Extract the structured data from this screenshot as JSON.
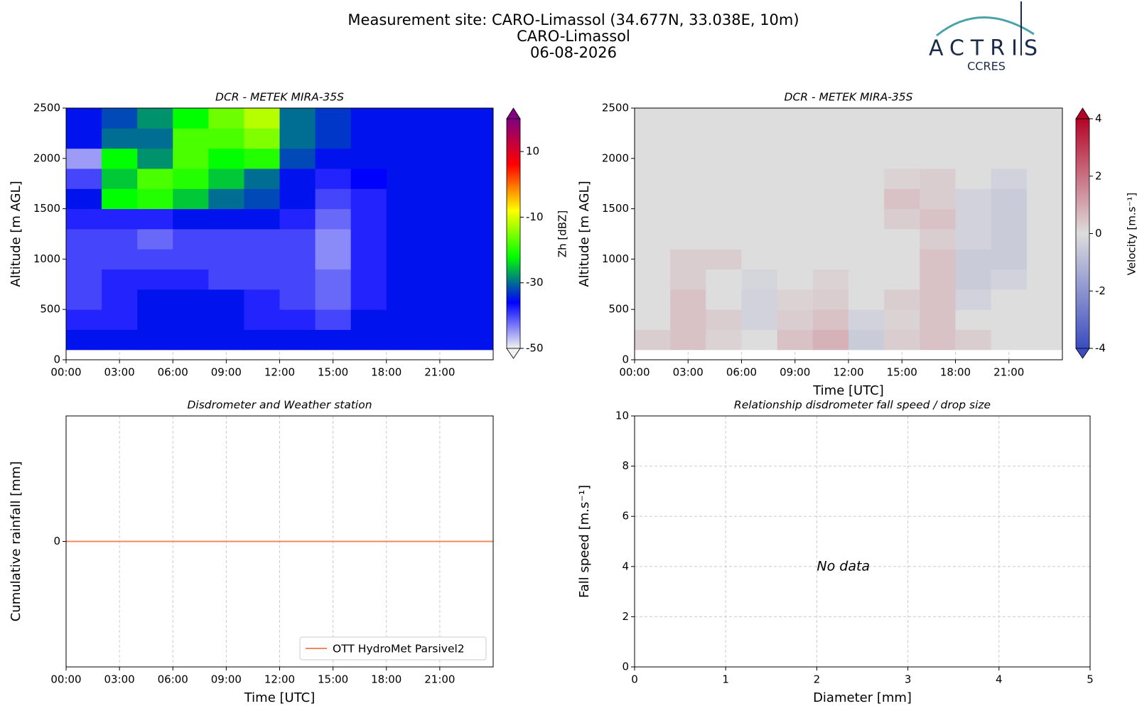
{
  "header": {
    "lines": [
      "Measurement site: CARO-Limassol (34.677N, 33.038E, 10m)",
      "CARO-Limassol",
      "06-08-2026"
    ]
  },
  "logo": {
    "text": "ACTRIS",
    "subtext": "CCRES"
  },
  "chart_data": [
    {
      "type": "heatmap",
      "title": "DCR - METEK MIRA-35S",
      "ylabel": "Altitude [m AGL]",
      "x": [
        1,
        3,
        5,
        7,
        9,
        11,
        13,
        15,
        17,
        19,
        21,
        23
      ],
      "y": [
        200,
        400,
        600,
        800,
        1000,
        1200,
        1400,
        1600,
        1800,
        2000,
        2200,
        2400
      ],
      "z": [
        [
          -35,
          -35,
          -35,
          -35,
          -35,
          -35,
          -35,
          -35,
          -35,
          -35,
          -35,
          -35
        ],
        [
          -38,
          -38,
          -35,
          -35,
          -35,
          -38,
          -38,
          -40,
          -35,
          -35,
          -35,
          -35
        ],
        [
          -40,
          -38,
          -35,
          -35,
          -35,
          -38,
          -40,
          -42,
          -38,
          -35,
          -35,
          -35
        ],
        [
          -40,
          -38,
          -38,
          -38,
          -40,
          -40,
          -40,
          -42,
          -38,
          -35,
          -35,
          -35
        ],
        [
          -40,
          -40,
          -40,
          -40,
          -40,
          -40,
          -40,
          -44,
          -38,
          -35,
          -35,
          -35
        ],
        [
          -40,
          -40,
          -42,
          -40,
          -40,
          -40,
          -40,
          -44,
          -38,
          -35,
          -35,
          -35
        ],
        [
          -38,
          -38,
          -38,
          -35,
          -35,
          -35,
          -38,
          -42,
          -38,
          -35,
          -35,
          -35
        ],
        [
          -35,
          -22,
          -20,
          -25,
          -30,
          -32,
          -35,
          -40,
          -38,
          -35,
          -35,
          -35
        ],
        [
          -40,
          -25,
          -18,
          -20,
          -25,
          -30,
          -35,
          -38,
          -36,
          -35,
          -35,
          -35
        ],
        [
          -45,
          -22,
          -28,
          -18,
          -22,
          -20,
          -32,
          -35,
          -35,
          -35,
          -35,
          -35
        ],
        [
          -35,
          -30,
          -30,
          -18,
          -18,
          -15,
          -30,
          -33,
          -35,
          -35,
          -35,
          -35
        ],
        [
          -35,
          -32,
          -28,
          -22,
          -16,
          -12,
          -30,
          -33,
          -35,
          -35,
          -35,
          -35
        ]
      ],
      "colormap": [
        "#f2f2f2",
        "#0000ff",
        "#00ff00",
        "#ffff00",
        "#ff0000",
        "#800080"
      ],
      "colorbar": {
        "label": "Zh [dBZ]",
        "lim": [
          -50,
          20
        ],
        "ticks": [
          -50,
          -30,
          -10,
          10
        ]
      },
      "xlim": [
        0,
        24
      ],
      "xticks": [
        {
          "value": 0,
          "label": "00:00"
        },
        {
          "value": 3,
          "label": "03:00"
        },
        {
          "value": 6,
          "label": "06:00"
        },
        {
          "value": 9,
          "label": "09:00"
        },
        {
          "value": 12,
          "label": "12:00"
        },
        {
          "value": 15,
          "label": "15:00"
        },
        {
          "value": 18,
          "label": "18:00"
        },
        {
          "value": 21,
          "label": "21:00"
        }
      ],
      "ylim": [
        0,
        2500
      ],
      "yticks": [
        0,
        500,
        1000,
        1500,
        2000,
        2500
      ],
      "grid": true
    },
    {
      "type": "heatmap",
      "title": "DCR - METEK MIRA-35S",
      "xlabel": "Time [UTC]",
      "ylabel": "Altitude [m AGL]",
      "x": [
        1,
        3,
        5,
        7,
        9,
        11,
        13,
        15,
        17,
        19,
        21,
        23
      ],
      "y": [
        200,
        400,
        600,
        800,
        1000,
        1200,
        1400,
        1600,
        1800,
        2000,
        2200,
        2400
      ],
      "z": [
        [
          0.3,
          0.5,
          0.2,
          0,
          0.5,
          0.8,
          -0.5,
          0.3,
          0.5,
          0.3,
          0,
          0
        ],
        [
          0,
          0.5,
          0.3,
          -0.3,
          0.3,
          0.5,
          -0.3,
          0.2,
          0.5,
          0,
          0,
          0
        ],
        [
          0,
          0.5,
          0,
          -0.3,
          0.2,
          0.3,
          0,
          0.3,
          0.5,
          -0.3,
          0,
          0
        ],
        [
          0,
          0.3,
          0,
          -0.2,
          0,
          0.2,
          0,
          0,
          0.5,
          -0.5,
          -0.3,
          0
        ],
        [
          0,
          0.3,
          0.3,
          0,
          0,
          0,
          0,
          0,
          0.5,
          -0.5,
          -0.5,
          0
        ],
        [
          0,
          0,
          0,
          0,
          0,
          0,
          0,
          0,
          0.3,
          -0.3,
          -0.5,
          0
        ],
        [
          0,
          0,
          0,
          0,
          0,
          0,
          0,
          0.3,
          0.5,
          -0.3,
          -0.5,
          0
        ],
        [
          0,
          0,
          0,
          0,
          0,
          0,
          0,
          0.5,
          0.3,
          -0.3,
          -0.5,
          0
        ],
        [
          0,
          0,
          0,
          0,
          0,
          0,
          0,
          0.2,
          0.3,
          0,
          -0.3,
          0
        ],
        [
          0,
          0,
          0,
          0,
          0,
          0,
          0,
          0,
          0,
          0,
          0,
          0
        ],
        [
          0,
          0,
          0,
          0,
          0,
          0,
          0,
          0,
          0,
          0,
          0,
          0
        ],
        [
          0,
          0,
          0,
          0,
          0,
          0,
          0,
          0,
          0,
          0,
          0,
          0
        ]
      ],
      "colormap": [
        "#3b4cc0",
        "#dddddd",
        "#b40426"
      ],
      "colorbar": {
        "label": "Velocity [m.s⁻¹]",
        "lim": [
          -4,
          4
        ],
        "ticks": [
          -4,
          -2,
          0,
          2,
          4
        ]
      },
      "xlim": [
        0,
        24
      ],
      "xticks": [
        {
          "value": 0,
          "label": "00:00"
        },
        {
          "value": 3,
          "label": "03:00"
        },
        {
          "value": 6,
          "label": "06:00"
        },
        {
          "value": 9,
          "label": "09:00"
        },
        {
          "value": 12,
          "label": "12:00"
        },
        {
          "value": 15,
          "label": "15:00"
        },
        {
          "value": 18,
          "label": "18:00"
        },
        {
          "value": 21,
          "label": "21:00"
        }
      ],
      "ylim": [
        0,
        2500
      ],
      "yticks": [
        0,
        500,
        1000,
        1500,
        2000,
        2500
      ],
      "grid": true
    },
    {
      "type": "line",
      "title": "Disdrometer and Weather station",
      "xlabel": "Time [UTC]",
      "ylabel": "Cumulative rainfall [mm]",
      "x": [
        0,
        24
      ],
      "series": [
        {
          "name": "OTT HydroMet Parsivel2",
          "color": "#f08a5d",
          "values": [
            0,
            0
          ]
        }
      ],
      "xlim": [
        0,
        24
      ],
      "xticks": [
        {
          "value": 0,
          "label": "00:00"
        },
        {
          "value": 3,
          "label": "03:00"
        },
        {
          "value": 6,
          "label": "06:00"
        },
        {
          "value": 9,
          "label": "09:00"
        },
        {
          "value": 12,
          "label": "12:00"
        },
        {
          "value": 15,
          "label": "15:00"
        },
        {
          "value": 18,
          "label": "18:00"
        },
        {
          "value": 21,
          "label": "21:00"
        }
      ],
      "ylim": [
        -1,
        1
      ],
      "yticks": [
        0
      ],
      "grid": true,
      "legend": "lower right"
    },
    {
      "type": "scatter",
      "title": "Relationship disdrometer fall speed / drop size",
      "xlabel": "Diameter [mm]",
      "ylabel": "Fall speed [m.s⁻¹]",
      "annotation": {
        "text": "No data",
        "x": 2,
        "y": 4
      },
      "xlim": [
        0,
        5
      ],
      "xticks": [
        0,
        1,
        2,
        3,
        4,
        5
      ],
      "ylim": [
        0,
        10
      ],
      "yticks": [
        0,
        2,
        4,
        6,
        8,
        10
      ],
      "grid": true
    }
  ]
}
